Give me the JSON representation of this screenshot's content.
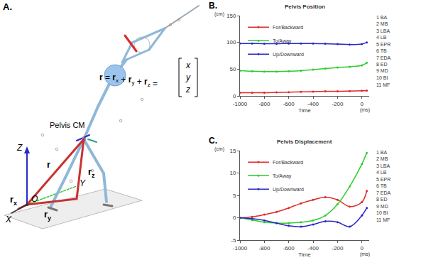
{
  "diagram": {
    "panel": "A.",
    "equation": [
      {
        "text": "r",
        "bold": true
      },
      {
        "text": " = "
      },
      {
        "text": "r",
        "bold": true,
        "sub": "x"
      },
      {
        "text": " + "
      },
      {
        "text": "r",
        "bold": true,
        "sub": "y"
      },
      {
        "text": " + "
      },
      {
        "text": "r",
        "bold": true,
        "sub": "z"
      },
      {
        "text": " = "
      }
    ],
    "matrix": [
      "x",
      "y",
      "z"
    ],
    "labels": {
      "pelvis": "Pelvis CM",
      "z_axis": "Z",
      "x_axis": "X",
      "y_axis": "Y",
      "origin": "O",
      "r": {
        "text": "r"
      },
      "rx": {
        "text": "r",
        "sub": "x"
      },
      "ry": {
        "text": "r",
        "sub": "y"
      },
      "rz": {
        "text": "r",
        "sub": "z"
      }
    }
  },
  "chart_data": [
    {
      "type": "line",
      "panel": "B.",
      "title": "Pelvis Position",
      "y_label": "(cm)",
      "x_label": "Time",
      "x_unit": "(ms)",
      "x": [
        -1000,
        -900,
        -800,
        -700,
        -600,
        -500,
        -400,
        -300,
        -200,
        -100,
        0,
        40
      ],
      "series": [
        {
          "name": "For/Backward",
          "color": "#e02828",
          "values": [
            6,
            6,
            6,
            6.5,
            7,
            7.5,
            8,
            8.5,
            8.5,
            9,
            9.5,
            10
          ]
        },
        {
          "name": "To/Away",
          "color": "#2ecc2e",
          "values": [
            47,
            46,
            45.5,
            45.5,
            46,
            47,
            49,
            51,
            53,
            54.5,
            57,
            62
          ]
        },
        {
          "name": "Up/Downward",
          "color": "#2828c8",
          "values": [
            98,
            98,
            97.5,
            97.5,
            98,
            98,
            98,
            97.5,
            97,
            96,
            97,
            100
          ]
        }
      ],
      "xlim": [
        -1000,
        60
      ],
      "xticks": [
        -1000,
        -800,
        -600,
        -400,
        -200,
        0
      ],
      "ylim": [
        0,
        150
      ],
      "yticks": [
        0,
        50,
        100,
        150
      ],
      "grid": false,
      "legend": "upper left",
      "marker": "circle",
      "annotations": [
        "1 BA",
        "2 MB",
        "3 LBA",
        "4 LB",
        "5 EPR",
        "6 TB",
        "7 EDA",
        "8 ED",
        "9 MD",
        "10 BI",
        "11 MF"
      ]
    },
    {
      "type": "line",
      "panel": "C.",
      "title": "Pelvis Displacement",
      "y_label": "(cm)",
      "x_label": "Time",
      "x_unit": "(ms)",
      "x": [
        -1000,
        -900,
        -800,
        -700,
        -600,
        -500,
        -400,
        -300,
        -200,
        -100,
        0,
        40
      ],
      "series": [
        {
          "name": "For/Backward",
          "color": "#e02828",
          "values": [
            0,
            0.2,
            0.7,
            1.3,
            2.2,
            3.2,
            4,
            4.6,
            4,
            2.5,
            3.5,
            6
          ]
        },
        {
          "name": "To/Away",
          "color": "#2ecc2e",
          "values": [
            0,
            -0.5,
            -1,
            -1.2,
            -1.2,
            -1,
            -0.6,
            0.5,
            3,
            7,
            12,
            14.5
          ]
        },
        {
          "name": "Up/Downward",
          "color": "#2828c8",
          "values": [
            0,
            -0.2,
            -0.6,
            -1.2,
            -1.8,
            -2,
            -1.5,
            -0.8,
            -1,
            -2,
            0.5,
            2.2
          ]
        }
      ],
      "xlim": [
        -1000,
        60
      ],
      "xticks": [
        -1000,
        -800,
        -600,
        -400,
        -200,
        0
      ],
      "ylim": [
        -5,
        15
      ],
      "yticks": [
        -5,
        0,
        5,
        10,
        15
      ],
      "grid": false,
      "legend": "upper left",
      "marker": "circle",
      "annotations": [
        "1 BA",
        "2 MB",
        "3 LBA",
        "4 LB",
        "5 EPR",
        "6 TB",
        "7 EDA",
        "8 ED",
        "9 MD",
        "10 BI",
        "11 MF"
      ]
    }
  ]
}
